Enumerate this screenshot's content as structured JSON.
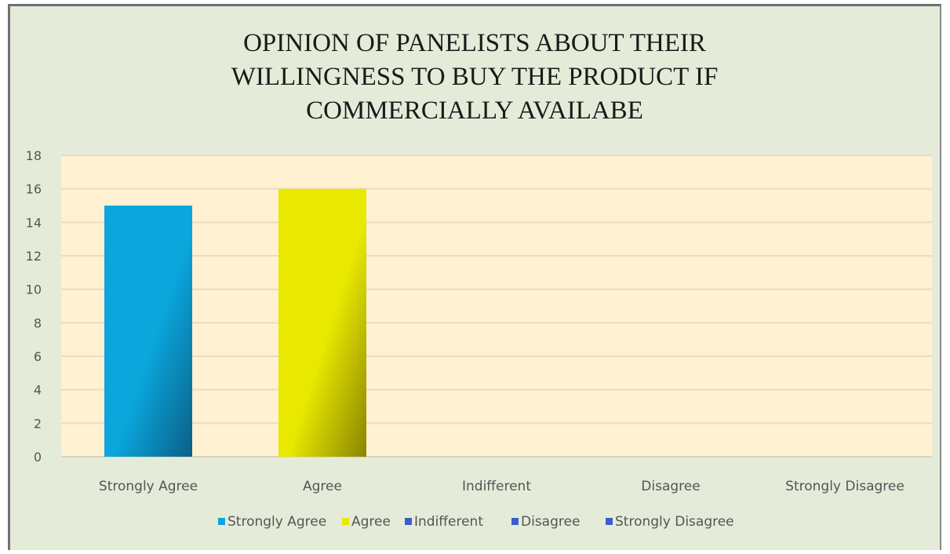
{
  "chart_data": {
    "type": "bar",
    "title": [
      "OPINION OF PANELISTS ABOUT THEIR",
      "WILLINGNESS TO BUY THE PRODUCT IF",
      "COMMERCIALLY AVAILABE"
    ],
    "categories": [
      "Strongly Agree",
      "Agree",
      "Indifferent",
      "Disagree",
      "Strongly Disagree"
    ],
    "values": [
      15,
      16,
      0,
      0,
      0
    ],
    "ylim": [
      0,
      18
    ],
    "yticks": [
      0,
      2,
      4,
      6,
      8,
      10,
      12,
      14,
      16,
      18
    ],
    "grid": true,
    "legend_position": "bottom",
    "legend": [
      "Strongly Agree",
      "Agree",
      "Indifferent",
      "Disagree",
      "Strongly Disagree"
    ],
    "colors": [
      "#0aa6dc",
      "#e8e800",
      "#3a5fc8",
      "#3a5fc8",
      "#3a5fc8"
    ],
    "colors_dark": [
      "#0a5f85",
      "#8a8400",
      "#2a4aa0",
      "#2a4aa0",
      "#2a4aa0"
    ],
    "plot_background": "#fff1d2",
    "chart_background": "#e4ecd9",
    "gridline_color": "#e6dcc6"
  }
}
